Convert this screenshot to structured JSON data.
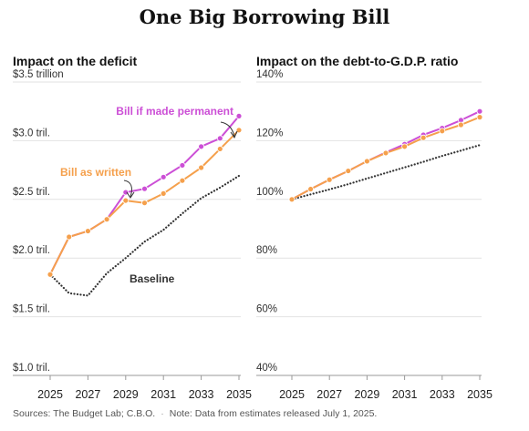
{
  "title": "One Big Borrowing Bill",
  "source": {
    "credit": "Sources: The Budget Lab; C.B.O.",
    "note": "Note: Data from estimates released July 1, 2025."
  },
  "colors": {
    "permanent": "#cc4fd6",
    "written": "#f5a04c",
    "baseline": "#333333"
  },
  "chart_data": [
    {
      "type": "line",
      "title": "Impact on the deficit",
      "x": [
        2025,
        2026,
        2027,
        2028,
        2029,
        2030,
        2031,
        2032,
        2033,
        2034,
        2035
      ],
      "xticks": [
        "2025",
        "2027",
        "2029",
        "2031",
        "2033",
        "2035"
      ],
      "yticks": [
        {
          "v": 3.5,
          "label": "$3.5 trillion"
        },
        {
          "v": 3.0,
          "label": "$3.0 tril."
        },
        {
          "v": 2.5,
          "label": "$2.5 tril."
        },
        {
          "v": 2.0,
          "label": "$2.0 tril."
        },
        {
          "v": 1.5,
          "label": "$1.5 tril."
        },
        {
          "v": 1.0,
          "label": "$1.0 tril."
        }
      ],
      "ylim": [
        1.0,
        3.5
      ],
      "series": [
        {
          "name": "Bill if made permanent",
          "key": "permanent",
          "markers": true,
          "values": [
            1.86,
            2.18,
            2.23,
            2.33,
            2.56,
            2.59,
            2.69,
            2.79,
            2.95,
            3.02,
            3.21
          ]
        },
        {
          "name": "Bill as written",
          "key": "written",
          "markers": true,
          "values": [
            1.86,
            2.18,
            2.23,
            2.33,
            2.49,
            2.47,
            2.55,
            2.66,
            2.77,
            2.93,
            3.09
          ]
        },
        {
          "name": "Baseline",
          "key": "baseline",
          "dotted": true,
          "values": [
            1.86,
            1.7,
            1.68,
            1.87,
            2.0,
            2.14,
            2.24,
            2.38,
            2.51,
            2.6,
            2.7
          ]
        }
      ]
    },
    {
      "type": "line",
      "title": "Impact on the debt-to-G.D.P. ratio",
      "x": [
        2025,
        2026,
        2027,
        2028,
        2029,
        2030,
        2031,
        2032,
        2033,
        2034,
        2035
      ],
      "xticks": [
        "2025",
        "2027",
        "2029",
        "2031",
        "2033",
        "2035"
      ],
      "yticks": [
        {
          "v": 140,
          "label": "140%"
        },
        {
          "v": 120,
          "label": "120%"
        },
        {
          "v": 100,
          "label": "100%"
        },
        {
          "v": 80,
          "label": "80%"
        },
        {
          "v": 60,
          "label": "60%"
        },
        {
          "v": 40,
          "label": "40%"
        }
      ],
      "ylim": [
        40,
        140
      ],
      "series": [
        {
          "key": "permanent",
          "markers": true,
          "values": [
            100,
            103.5,
            106.7,
            109.7,
            113,
            116,
            118.8,
            122,
            124.3,
            127,
            130
          ]
        },
        {
          "key": "written",
          "markers": true,
          "values": [
            100,
            103.5,
            106.7,
            109.7,
            113,
            115.8,
            118,
            121,
            123.3,
            125.4,
            128
          ]
        },
        {
          "key": "baseline",
          "dotted": true,
          "values": [
            100,
            101.7,
            103.4,
            105.2,
            107.1,
            109,
            110.9,
            112.8,
            114.8,
            116.6,
            118.5
          ]
        }
      ]
    }
  ]
}
